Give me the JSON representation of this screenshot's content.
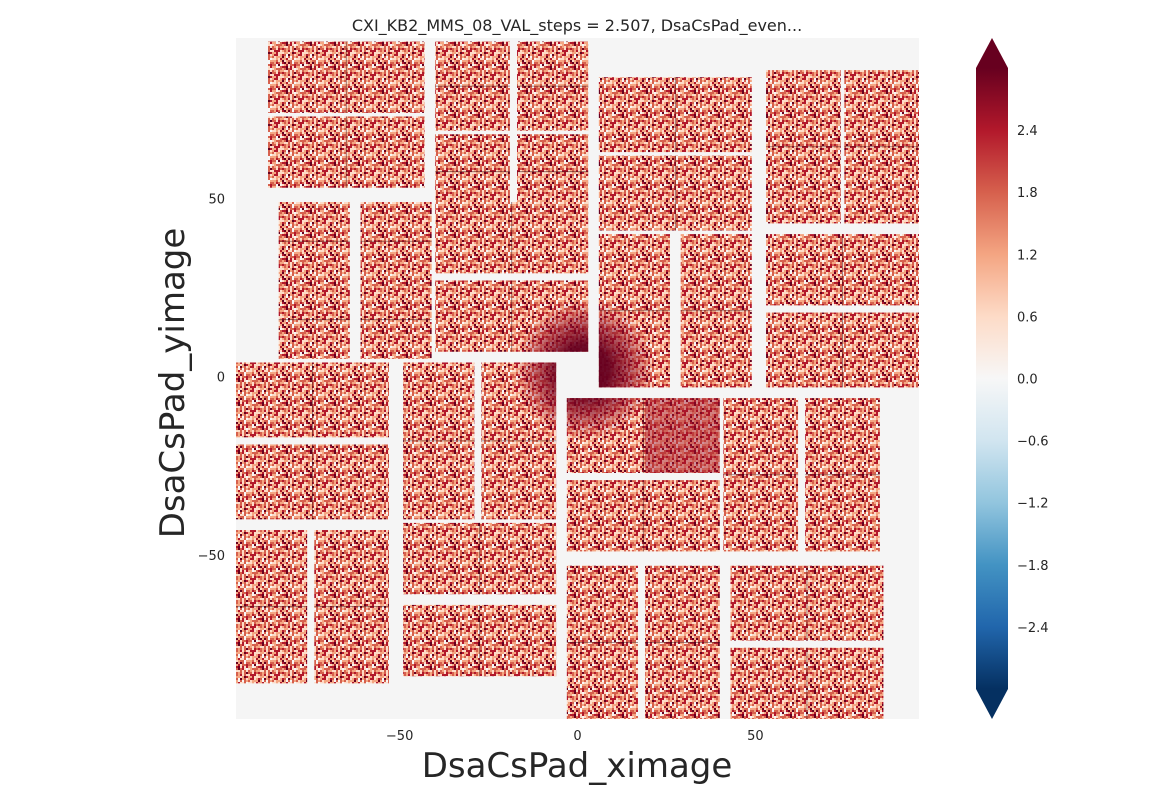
{
  "chart_data": {
    "type": "heatmap",
    "title": "CXI_KB2_MMS_08_VAL_steps = 2.507, DsaCsPad_even...",
    "xlabel": "DsaCsPad_ximage",
    "ylabel": "DsaCsPad_yimage",
    "xlim": [
      -96,
      96
    ],
    "ylim": [
      -96,
      95
    ],
    "xticks": [
      -50,
      0,
      50
    ],
    "xtick_labels": [
      "−50",
      "0",
      "50"
    ],
    "yticks": [
      50,
      0,
      -50
    ],
    "ytick_labels": [
      "50",
      "0",
      "−50"
    ],
    "grid": false,
    "background_color": "#f5f5f5",
    "colorbar": {
      "colormap": "RdBu_r",
      "vmin": -3.0,
      "vmax": 3.0,
      "extend": "both",
      "ticks": [
        2.4,
        1.8,
        1.2,
        0.6,
        0.0,
        -0.6,
        -1.2,
        -1.8,
        -2.4
      ],
      "tick_labels": [
        "2.4",
        "1.8",
        "1.2",
        "0.6",
        "0.0",
        "−0.6",
        "−1.2",
        "−1.8",
        "−2.4"
      ],
      "stops": [
        "#053061",
        "#2166ac",
        "#4393c3",
        "#92c5de",
        "#d1e5f0",
        "#f7f7f7",
        "#fddbc7",
        "#f4a582",
        "#d6604d",
        "#b2182b",
        "#67001f"
      ]
    },
    "hotspot": {
      "x": 2,
      "y": 2,
      "value": 3.0
    },
    "panels": [
      {
        "name": "q1-a1",
        "x0": -87,
        "x1": -43,
        "y0": 74,
        "y1": 94
      },
      {
        "name": "q1-a2",
        "x0": -87,
        "x1": -43,
        "y0": 53,
        "y1": 73
      },
      {
        "name": "q1-b1",
        "x0": -40,
        "x1": -19,
        "y0": 69,
        "y1": 94
      },
      {
        "name": "q1-b2",
        "x0": -40,
        "x1": -19,
        "y0": 47,
        "y1": 68
      },
      {
        "name": "q1-c1",
        "x0": -17,
        "x1": 3,
        "y0": 69,
        "y1": 94
      },
      {
        "name": "q1-c2",
        "x0": -17,
        "x1": 3,
        "y0": 47,
        "y1": 68
      },
      {
        "name": "q1-d1",
        "x0": -84,
        "x1": -64,
        "y0": 27,
        "y1": 49
      },
      {
        "name": "q1-d2",
        "x0": -84,
        "x1": -64,
        "y0": 5,
        "y1": 27
      },
      {
        "name": "q1-e1",
        "x0": -61,
        "x1": -41,
        "y0": 27,
        "y1": 49
      },
      {
        "name": "q1-e2",
        "x0": -61,
        "x1": -41,
        "y0": 5,
        "y1": 27
      },
      {
        "name": "q1-f1",
        "x0": -40,
        "x1": 3,
        "y0": 29,
        "y1": 49
      },
      {
        "name": "q1-f2",
        "x0": -40,
        "x1": 3,
        "y0": 7,
        "y1": 27
      },
      {
        "name": "q2-a1",
        "x0": 6,
        "x1": 49,
        "y0": 63,
        "y1": 84
      },
      {
        "name": "q2-a2",
        "x0": 6,
        "x1": 49,
        "y0": 41,
        "y1": 62
      },
      {
        "name": "q2-b1",
        "x0": 53,
        "x1": 74,
        "y0": 43,
        "y1": 86
      },
      {
        "name": "q2-b2",
        "x0": 75,
        "x1": 96,
        "y0": 43,
        "y1": 86
      },
      {
        "name": "q2-c1",
        "x0": 6,
        "x1": 26,
        "y0": -3,
        "y1": 40
      },
      {
        "name": "q2-c2",
        "x0": 29,
        "x1": 49,
        "y0": -3,
        "y1": 40
      },
      {
        "name": "q2-d1",
        "x0": 53,
        "x1": 96,
        "y0": 20,
        "y1": 40
      },
      {
        "name": "q2-d2",
        "x0": 53,
        "x1": 96,
        "y0": -3,
        "y1": 18
      },
      {
        "name": "q3-a1",
        "x0": -96,
        "x1": -53,
        "y0": -17,
        "y1": 4
      },
      {
        "name": "q3-a2",
        "x0": -96,
        "x1": -53,
        "y0": -40,
        "y1": -19
      },
      {
        "name": "q3-b1",
        "x0": -49,
        "x1": -29,
        "y0": -40,
        "y1": 4
      },
      {
        "name": "q3-b2",
        "x0": -27,
        "x1": -6,
        "y0": -40,
        "y1": 4
      },
      {
        "name": "q3-c1",
        "x0": -96,
        "x1": -76,
        "y0": -86,
        "y1": -43
      },
      {
        "name": "q3-c2",
        "x0": -74,
        "x1": -53,
        "y0": -86,
        "y1": -43
      },
      {
        "name": "q3-d1",
        "x0": -49,
        "x1": -6,
        "y0": -61,
        "y1": -41
      },
      {
        "name": "q3-d2",
        "x0": -49,
        "x1": -6,
        "y0": -84,
        "y1": -64
      },
      {
        "name": "q4-a1",
        "x0": -3,
        "x1": 40,
        "y0": -27,
        "y1": -6
      },
      {
        "name": "q4-a2",
        "x0": -3,
        "x1": 40,
        "y0": -49,
        "y1": -29
      },
      {
        "name": "q4-b1",
        "x0": 41,
        "x1": 62,
        "y0": -49,
        "y1": -6
      },
      {
        "name": "q4-b2",
        "x0": 64,
        "x1": 85,
        "y0": -49,
        "y1": -6
      },
      {
        "name": "q4-c1",
        "x0": -3,
        "x1": 17,
        "y0": -96,
        "y1": -53
      },
      {
        "name": "q4-c2",
        "x0": 19,
        "x1": 40,
        "y0": -96,
        "y1": -53
      },
      {
        "name": "q4-d1",
        "x0": 43,
        "x1": 86,
        "y0": -74,
        "y1": -53
      },
      {
        "name": "q4-d2",
        "x0": 43,
        "x1": 86,
        "y0": -96,
        "y1": -76
      }
    ]
  }
}
